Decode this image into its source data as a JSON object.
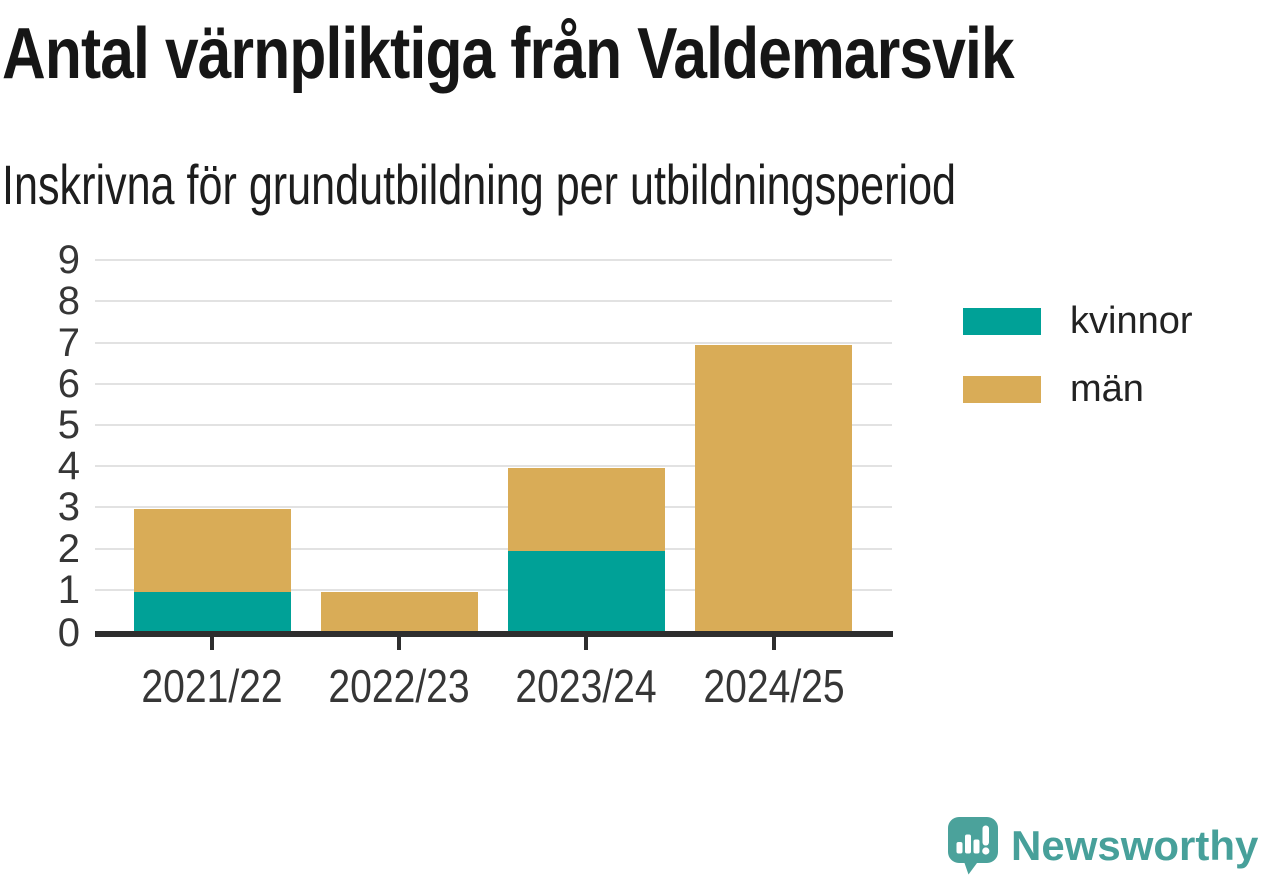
{
  "chart_data": {
    "type": "bar",
    "stacked": true,
    "title": "Antal värnpliktiga från Valdemarsvik",
    "subtitle": "Inskrivna för grundutbildning per utbildningsperiod",
    "categories": [
      "2021/22",
      "2022/23",
      "2023/24",
      "2024/25"
    ],
    "series": [
      {
        "name": "kvinnor",
        "color": "#00a197",
        "values": [
          1,
          0,
          2,
          0
        ]
      },
      {
        "name": "män",
        "color": "#d9ac57",
        "values": [
          2,
          1,
          2,
          7
        ]
      }
    ],
    "totals": [
      3,
      1,
      4,
      7
    ],
    "xlabel": "",
    "ylabel": "",
    "ylim": [
      0,
      9
    ],
    "yticks": [
      0,
      1,
      2,
      3,
      4,
      5,
      6,
      7,
      8,
      9
    ],
    "grid": "horizontal",
    "legend_position": "right"
  },
  "footer": {
    "brand": "Newsworthy"
  },
  "colors": {
    "axis": "#2e2e2e",
    "gridline": "#e2e2e2",
    "tick_label": "#363636",
    "title_text": "#161616",
    "kvinnor": "#00a197",
    "man": "#d9ac57",
    "brand_teal": "#47a09a"
  }
}
